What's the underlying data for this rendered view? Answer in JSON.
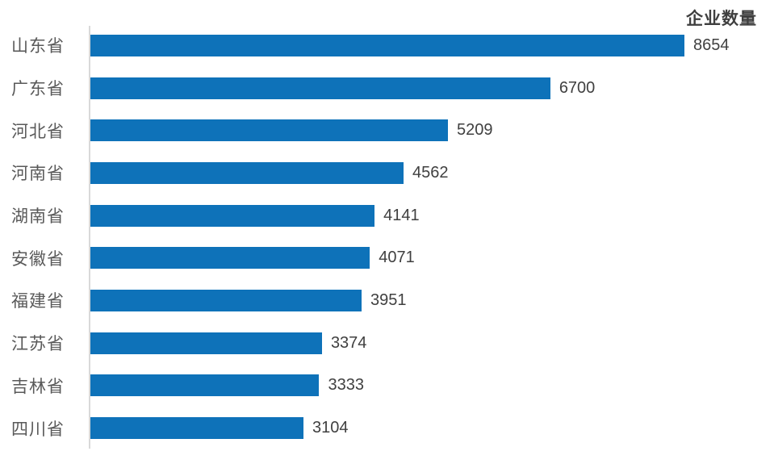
{
  "chart_data": {
    "type": "bar",
    "orientation": "horizontal",
    "title": "企业数量",
    "categories": [
      "山东省",
      "广东省",
      "河北省",
      "河南省",
      "湖南省",
      "安徽省",
      "福建省",
      "江苏省",
      "吉林省",
      "四川省"
    ],
    "values": [
      8654,
      6700,
      5209,
      4562,
      4141,
      4071,
      3951,
      3374,
      3333,
      3104
    ],
    "value_labels_shown": true,
    "xlabel": "",
    "ylabel": "",
    "xlim": [
      0,
      8654
    ],
    "grid": false,
    "legend": "none",
    "sort_order": "descending",
    "bar_color": "#0e72b9",
    "axis_line_color": "#d9d9d9",
    "category_label_color": "#595959",
    "value_label_color": "#404040",
    "title_color": "#3f3f3f"
  }
}
